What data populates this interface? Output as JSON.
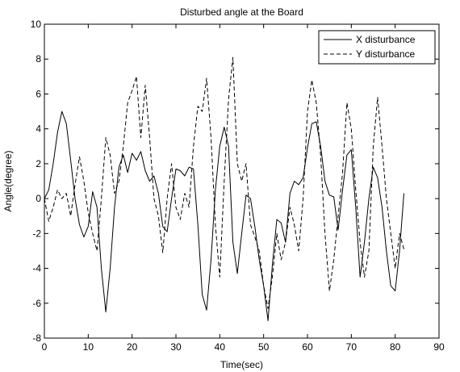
{
  "chart_data": {
    "type": "line",
    "title": "Disturbed angle at the Board",
    "xlabel": "Time(sec)",
    "ylabel": "Angle(degree)",
    "xlim": [
      0,
      90
    ],
    "ylim": [
      -8,
      10
    ],
    "xticks": [
      0,
      10,
      20,
      30,
      40,
      50,
      60,
      70,
      80,
      90
    ],
    "yticks": [
      -8,
      -6,
      -4,
      -2,
      0,
      2,
      4,
      6,
      8,
      10
    ],
    "grid": false,
    "legend_position": "top-right",
    "series": [
      {
        "name": "X disturbance",
        "style": "solid",
        "color": "#000000",
        "x": [
          0,
          1,
          2,
          3,
          4,
          5,
          6,
          7,
          8,
          9,
          10,
          11,
          12,
          13,
          14,
          15,
          16,
          17,
          18,
          19,
          20,
          21,
          22,
          23,
          24,
          25,
          26,
          27,
          28,
          29,
          30,
          31,
          32,
          33,
          34,
          35,
          36,
          37,
          38,
          39,
          40,
          41,
          42,
          43,
          44,
          45,
          46,
          47,
          48,
          49,
          50,
          51,
          52,
          53,
          54,
          55,
          56,
          57,
          58,
          59,
          60,
          61,
          62,
          63,
          64,
          65,
          66,
          67,
          68,
          69,
          70,
          71,
          72,
          73,
          74,
          75,
          76,
          77,
          78,
          79,
          80,
          81,
          82
        ],
        "y": [
          0.0,
          0.5,
          2.0,
          3.8,
          5.0,
          4.3,
          2.2,
          0.0,
          -1.5,
          -2.2,
          -1.6,
          0.4,
          -0.5,
          -4.0,
          -6.5,
          -4.0,
          -0.5,
          1.8,
          2.5,
          1.5,
          2.6,
          2.2,
          2.7,
          1.6,
          1.0,
          1.3,
          0.3,
          -1.6,
          -1.9,
          0.0,
          1.7,
          1.6,
          1.3,
          1.8,
          1.7,
          -1.5,
          -5.5,
          -6.4,
          -3.5,
          0.5,
          3.0,
          4.1,
          3.0,
          -2.5,
          -4.3,
          -2.0,
          0.2,
          0.0,
          -1.6,
          -3.5,
          -5.0,
          -7.0,
          -3.8,
          -1.2,
          -1.4,
          -2.5,
          0.3,
          1.0,
          0.8,
          1.2,
          2.9,
          4.3,
          4.4,
          3.0,
          1.0,
          0.2,
          0.1,
          -1.8,
          0.5,
          2.5,
          2.8,
          -0.5,
          -4.5,
          -2.5,
          0.0,
          1.8,
          1.2,
          -0.5,
          -3.0,
          -5.0,
          -5.3,
          -3.0,
          0.3
        ]
      },
      {
        "name": "Y disturbance",
        "style": "dashed",
        "color": "#000000",
        "x": [
          0,
          1,
          2,
          3,
          4,
          5,
          6,
          7,
          8,
          9,
          10,
          11,
          12,
          13,
          14,
          15,
          16,
          17,
          18,
          19,
          20,
          21,
          22,
          23,
          24,
          25,
          26,
          27,
          28,
          29,
          30,
          31,
          32,
          33,
          34,
          35,
          36,
          37,
          38,
          39,
          40,
          41,
          42,
          43,
          44,
          45,
          46,
          47,
          48,
          49,
          50,
          51,
          52,
          53,
          54,
          55,
          56,
          57,
          58,
          59,
          60,
          61,
          62,
          63,
          64,
          65,
          66,
          67,
          68,
          69,
          70,
          71,
          72,
          73,
          74,
          75,
          76,
          77,
          78,
          79,
          80,
          81,
          82
        ],
        "y": [
          0.0,
          -1.3,
          -0.5,
          0.5,
          0.0,
          0.3,
          -1.0,
          0.8,
          2.4,
          1.0,
          -0.8,
          -2.0,
          -3.0,
          0.0,
          3.5,
          2.5,
          0.3,
          1.0,
          3.0,
          5.5,
          6.2,
          7.0,
          3.5,
          6.5,
          3.5,
          0.0,
          -1.0,
          -3.1,
          0.0,
          2.0,
          -0.5,
          -1.2,
          0.3,
          -0.5,
          3.0,
          5.3,
          5.0,
          6.9,
          3.5,
          -1.5,
          -4.5,
          1.0,
          5.7,
          8.1,
          2.0,
          1.0,
          2.0,
          -1.5,
          -2.2,
          -3.0,
          -5.0,
          -6.3,
          -4.5,
          -2.0,
          -3.5,
          -2.5,
          -0.5,
          -1.5,
          -3.0,
          0.0,
          5.0,
          6.8,
          5.5,
          2.5,
          -2.0,
          -5.3,
          -3.5,
          -1.0,
          1.5,
          5.5,
          4.0,
          0.5,
          -2.5,
          -4.5,
          -3.0,
          3.0,
          5.8,
          3.0,
          0.0,
          -2.0,
          -4.0,
          -2.0,
          -2.9
        ]
      }
    ]
  }
}
